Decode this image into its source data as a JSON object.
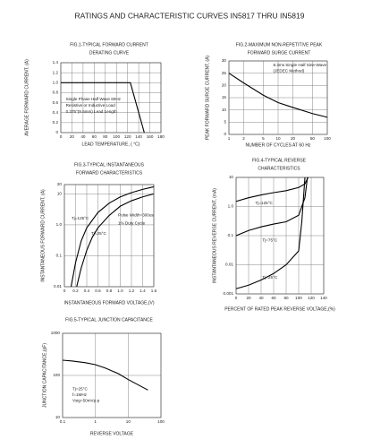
{
  "title": "RATINGS AND CHARACTERISTIC CURVES IN5817 THRU IN5819",
  "chart_data": [
    {
      "type": "line",
      "title": "FIG.1-TYPICAL FORWARD CURRENT",
      "subtitle": "DERATING CURVE",
      "xlabel": "LEAD TEMPERATURE, ( °C)",
      "ylabel": "AVERAGE FORWARD CURRENT, (A)",
      "xlim": [
        0,
        180
      ],
      "ylim": [
        0,
        1.4
      ],
      "xticks": [
        0,
        20,
        40,
        60,
        80,
        100,
        120,
        140,
        160,
        180
      ],
      "yticks": [
        0,
        0.2,
        0.4,
        0.6,
        0.8,
        {
          "value": 1,
          "label": "1.0"
        },
        1.2,
        1.4
      ],
      "grid": true,
      "annotations": [
        "Single Phase Half Wave 60Hz",
        "Resistive or Inductive Load",
        "0.375\"(9.5mm) Lead Length"
      ],
      "series": [
        {
          "color": "#000000",
          "x": [
            0,
            125,
            150
          ],
          "values": [
            1,
            1,
            0
          ]
        }
      ]
    },
    {
      "type": "line",
      "title": "FIG.2-MAXIMUM NON-REPETITIVE PEAK",
      "subtitle": "FORWARD SURGE CURRENT",
      "xlabel": "NUMBER OF CYCLES AT 60 Hz",
      "ylabel": "PEAK FORWARD SURGE CURRENT, (A)",
      "xscale": "log",
      "xlim": [
        1,
        100
      ],
      "ylim": [
        0,
        30
      ],
      "xticks": [
        1,
        2,
        5,
        10,
        20,
        50,
        100
      ],
      "yticks": [
        0,
        5,
        10,
        15,
        20,
        25,
        30
      ],
      "grid": true,
      "annotations": [
        "8.3ms Single Half Sine-Wave",
        "(JEDEC Method)"
      ],
      "series": [
        {
          "color": "#000000",
          "x": [
            1,
            2,
            5,
            10,
            20,
            50,
            100
          ],
          "values": [
            25,
            21,
            16,
            13,
            11,
            8.5,
            7
          ]
        }
      ]
    },
    {
      "type": "line",
      "title": "FIG.3-TYPICAL INSTANTANEOUS",
      "subtitle": "FORWARD CHARACTERISTICS",
      "xlabel": "INSTANTANEOUS FORWARD VOLTAGE,(V)",
      "ylabel": "INSTANTANEOUS FORWARD CURRENT, (A)",
      "yscale": "log",
      "xlim": [
        0,
        1.6
      ],
      "ylim": [
        0.01,
        20
      ],
      "xticks": [
        0,
        0.2,
        0.4,
        0.6,
        0.8,
        {
          "value": 1,
          "label": "1.0"
        },
        1.2,
        1.4,
        1.6
      ],
      "yticks": [
        0.01,
        0.1,
        {
          "value": 1,
          "label": "1.0"
        },
        10,
        20
      ],
      "grid": true,
      "annotations": [
        "Pulse Width=300us",
        "1% Duty Cycle"
      ],
      "series": [
        {
          "name": "Tj=125°C",
          "color": "#000000",
          "x": [
            0.12,
            0.2,
            0.3,
            0.4,
            0.6,
            0.8,
            1,
            1.2,
            1.4,
            1.6
          ],
          "values": [
            0.01,
            0.06,
            0.3,
            0.8,
            2.5,
            5,
            8,
            11,
            14,
            17
          ]
        },
        {
          "name": "Tj=25°C",
          "color": "#000000",
          "x": [
            0.22,
            0.3,
            0.4,
            0.5,
            0.6,
            0.8,
            1,
            1.2,
            1.4,
            1.6
          ],
          "values": [
            0.01,
            0.04,
            0.15,
            0.4,
            0.8,
            2,
            4,
            6,
            8,
            10
          ]
        }
      ]
    },
    {
      "type": "line",
      "title": "FIG.4-TYPICAL REVERSE",
      "subtitle": "CHARACTERISTICS",
      "xlabel": "PERCENT OF RATED PEAK REVERSE VOLTAGE,(%)",
      "ylabel": "INSTANTANEOUS REVERSE CURRENT, (mA)",
      "yscale": "log",
      "xlim": [
        0,
        140
      ],
      "ylim": [
        0.001,
        10
      ],
      "xticks": [
        0,
        20,
        40,
        60,
        80,
        100,
        120,
        140
      ],
      "yticks": [
        0.001,
        0.01,
        0.1,
        {
          "value": 1,
          "label": "1.0"
        },
        10
      ],
      "grid": true,
      "annotations": [],
      "series": [
        {
          "name": "Tj=125°C",
          "color": "#000000",
          "x": [
            0,
            20,
            40,
            60,
            80,
            100,
            110,
            115
          ],
          "values": [
            1.5,
            2,
            2.5,
            3,
            3.5,
            4.5,
            6,
            10
          ]
        },
        {
          "name": "Tj=75°C",
          "color": "#000000",
          "x": [
            0,
            20,
            40,
            60,
            80,
            100,
            110,
            114
          ],
          "values": [
            0.1,
            0.15,
            0.2,
            0.25,
            0.3,
            0.5,
            2,
            10
          ]
        },
        {
          "name": "Tj=25°C",
          "color": "#000000",
          "x": [
            0,
            20,
            40,
            60,
            80,
            100,
            105,
            110
          ],
          "values": [
            0.0015,
            0.002,
            0.003,
            0.005,
            0.01,
            0.03,
            0.3,
            10
          ]
        }
      ]
    },
    {
      "type": "line",
      "title": "FIG.5-TYPICAL JUNCTION CAPACITANCE",
      "xlabel": "REVERSE VOLTAGE",
      "ylabel": "JUNCTION CAPACITANCE,(pF)",
      "xscale": "log",
      "yscale": "log",
      "xlim": [
        0.1,
        100
      ],
      "ylim": [
        10,
        1000
      ],
      "xticks": [
        0.1,
        1,
        10,
        100
      ],
      "yticks": [
        10,
        100,
        1000
      ],
      "grid": true,
      "annotations": [
        "Tj=25°C",
        "f=1MHz",
        "Vsig=50mVp-p"
      ],
      "series": [
        {
          "color": "#000000",
          "x": [
            0.1,
            0.2,
            0.5,
            1,
            2,
            5,
            10,
            20,
            40
          ],
          "values": [
            230,
            220,
            200,
            180,
            150,
            110,
            80,
            60,
            45
          ]
        }
      ]
    }
  ]
}
